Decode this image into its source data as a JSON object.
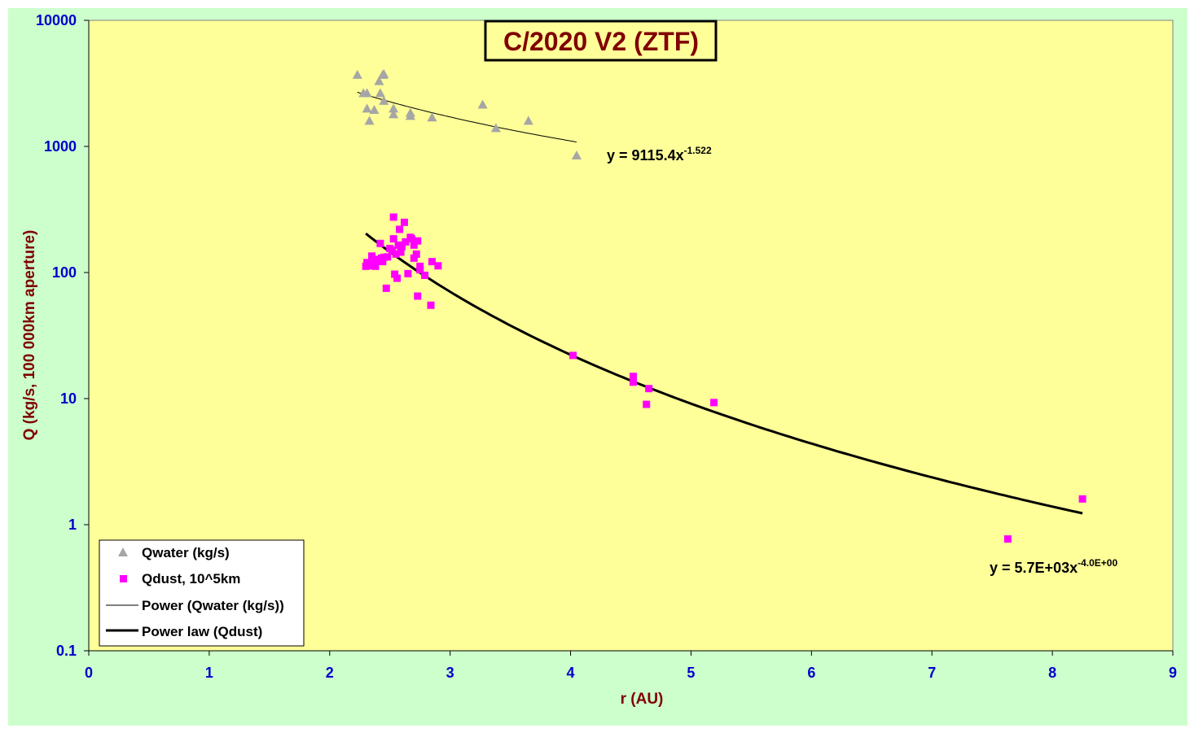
{
  "chart_data": {
    "type": "scatter",
    "title": "C/2020 V2 (ZTF)",
    "xlabel": "r (AU)",
    "ylabel": "Q (kg/s, 100 000km aperture)",
    "xlim": [
      0,
      9
    ],
    "ylim": [
      0.1,
      10000
    ],
    "yscale": "log",
    "x_ticks": [
      "0",
      "1",
      "2",
      "3",
      "4",
      "5",
      "6",
      "7",
      "8",
      "9"
    ],
    "y_ticks": [
      "0.1",
      "1",
      "10",
      "100",
      "1000",
      "10000"
    ],
    "grid": false,
    "legend_position": "bottom-left",
    "colors": {
      "figure_background": "#ccffcc",
      "plot_background": "#ffff99",
      "water_marker": "#a6a6a6",
      "dust_marker": "#ff00ff",
      "fit_line": "#000000"
    },
    "series": [
      {
        "name": "Qwater (kg/s)",
        "marker": "triangle",
        "color": "#a6a6a6",
        "points": [
          [
            2.23,
            3700
          ],
          [
            2.28,
            2650
          ],
          [
            2.31,
            2650
          ],
          [
            2.31,
            2000
          ],
          [
            2.33,
            1600
          ],
          [
            2.37,
            1950
          ],
          [
            2.41,
            3300
          ],
          [
            2.42,
            2650
          ],
          [
            2.44,
            3700
          ],
          [
            2.45,
            3750
          ],
          [
            2.45,
            2300
          ],
          [
            2.53,
            2000
          ],
          [
            2.53,
            1800
          ],
          [
            2.67,
            1850
          ],
          [
            2.67,
            1750
          ],
          [
            2.85,
            1700
          ],
          [
            3.27,
            2150
          ],
          [
            3.38,
            1400
          ],
          [
            3.65,
            1600
          ],
          [
            4.05,
            850
          ]
        ]
      },
      {
        "name": "Qdust, 10^5km",
        "marker": "square",
        "color": "#ff00ff",
        "points": [
          [
            2.3,
            112
          ],
          [
            2.31,
            120
          ],
          [
            2.33,
            113
          ],
          [
            2.35,
            135
          ],
          [
            2.36,
            118
          ],
          [
            2.38,
            120
          ],
          [
            2.38,
            112
          ],
          [
            2.4,
            127
          ],
          [
            2.42,
            170
          ],
          [
            2.43,
            130
          ],
          [
            2.44,
            122
          ],
          [
            2.45,
            132
          ],
          [
            2.47,
            75
          ],
          [
            2.48,
            133
          ],
          [
            2.5,
            155
          ],
          [
            2.52,
            150
          ],
          [
            2.53,
            275
          ],
          [
            2.53,
            185
          ],
          [
            2.54,
            97
          ],
          [
            2.55,
            140
          ],
          [
            2.56,
            90
          ],
          [
            2.57,
            165
          ],
          [
            2.58,
            220
          ],
          [
            2.59,
            145
          ],
          [
            2.6,
            160
          ],
          [
            2.62,
            250
          ],
          [
            2.63,
            175
          ],
          [
            2.65,
            98
          ],
          [
            2.67,
            190
          ],
          [
            2.68,
            185
          ],
          [
            2.7,
            165
          ],
          [
            2.7,
            130
          ],
          [
            2.72,
            140
          ],
          [
            2.73,
            178
          ],
          [
            2.73,
            65
          ],
          [
            2.75,
            112
          ],
          [
            2.75,
            105
          ],
          [
            2.79,
            95
          ],
          [
            2.84,
            55
          ],
          [
            2.85,
            122
          ],
          [
            2.9,
            113
          ],
          [
            4.02,
            22
          ],
          [
            4.52,
            13.5
          ],
          [
            4.52,
            15
          ],
          [
            4.63,
            9
          ],
          [
            4.65,
            12
          ],
          [
            5.19,
            9.3
          ],
          [
            7.63,
            0.77
          ],
          [
            8.25,
            1.6
          ]
        ]
      },
      {
        "name": "Power (Qwater (kg/s))",
        "type": "power_fit",
        "coefficient": 9115.4,
        "exponent": -1.522,
        "x_range": [
          2.23,
          4.05
        ],
        "equation": "y = 9115.4x",
        "equation_exponent": "-1.522"
      },
      {
        "name": "Power law (Qdust)",
        "type": "power_fit",
        "coefficient": 5700,
        "exponent": -4.0,
        "x_range": [
          2.3,
          8.25
        ],
        "equation": "y = 5.7E+03x",
        "equation_exponent": "-4.0E+00"
      }
    ]
  }
}
